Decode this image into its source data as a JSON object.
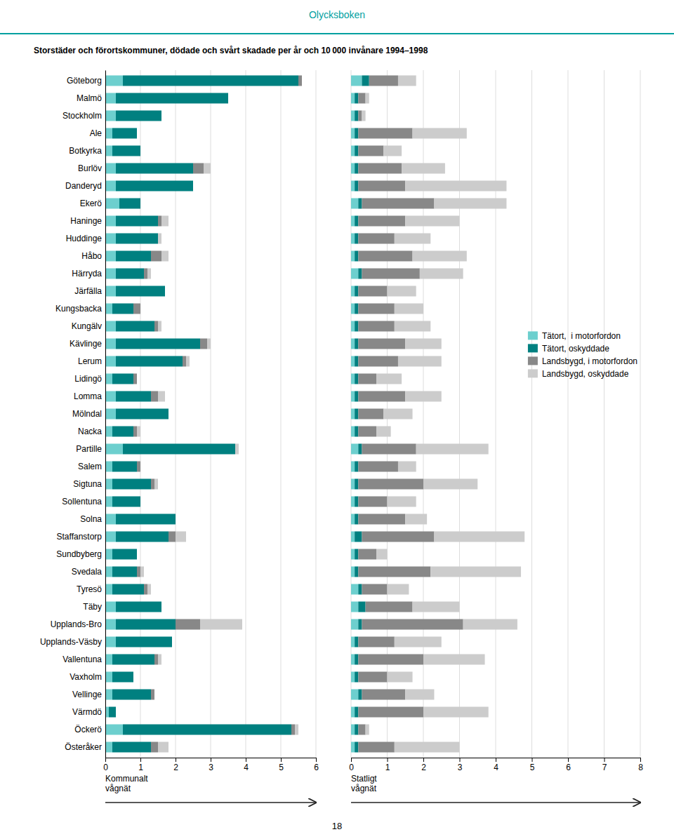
{
  "chart_data": [
    {
      "type": "bar",
      "title": "Olycksboken",
      "subtitle": "Storstäder och förortskommuner, dödade och svårt skadade per år och 10 000 invånare 1994–1998",
      "annotations": [
        "18"
      ],
      "orientation": "horizontal",
      "stacked": true,
      "grid": true,
      "xlabel": "Kommunalt\nvågnät",
      "categories": [
        "Göteborg",
        "Malmö",
        "Stockholm",
        "Ale",
        "Botkyrka",
        "Burlöv",
        "Danderyd",
        "Ekerö",
        "Haninge",
        "Huddinge",
        "Håbo",
        "Härryda",
        "Järfälla",
        "Kungsbacka",
        "Kungälv",
        "Kävlinge",
        "Lerum",
        "Lidingö",
        "Lomma",
        "Mölndal",
        "Nacka",
        "Partille",
        "Salem",
        "Sigtuna",
        "Sollentuna",
        "Solna",
        "Staffanstorp",
        "Sundbyberg",
        "Svedala",
        "Tyresö",
        "Täby",
        "Upplands-Bro",
        "Upplands-Väsby",
        "Vallentuna",
        "Vaxholm",
        "Vellinge",
        "Värmdö",
        "Öckerö",
        "Österåker"
      ],
      "series": [
        {
          "name": "Tätort,  i motorfordon",
          "color": "#6dcfce",
          "values": [
            0.5,
            0.3,
            0.3,
            0.2,
            0.2,
            0.3,
            0.3,
            0.4,
            0.3,
            0.3,
            0.3,
            0.3,
            0.3,
            0.2,
            0.3,
            0.3,
            0.3,
            0.2,
            0.3,
            0.3,
            0.2,
            0.5,
            0.2,
            0.2,
            0.2,
            0.3,
            0.3,
            0.2,
            0.2,
            0.2,
            0.3,
            0.3,
            0.3,
            0.2,
            0.2,
            0.2,
            0.1,
            0.5,
            0.2
          ]
        },
        {
          "name": "Tätort, oskyddade",
          "color": "#008080",
          "values": [
            5.0,
            3.2,
            1.3,
            0.7,
            0.8,
            2.2,
            2.2,
            0.6,
            1.2,
            1.2,
            1.0,
            0.8,
            1.4,
            0.6,
            1.1,
            2.4,
            1.9,
            0.6,
            1.0,
            1.5,
            0.6,
            3.2,
            0.7,
            1.1,
            0.8,
            1.7,
            1.5,
            0.7,
            0.7,
            0.9,
            1.3,
            1.7,
            1.6,
            1.2,
            0.6,
            1.1,
            0.2,
            4.8,
            1.1
          ]
        },
        {
          "name": "Landsbygd, i motorfordon",
          "color": "#888888",
          "values": [
            0.1,
            0.0,
            0.0,
            0.0,
            0.0,
            0.3,
            0.0,
            0.0,
            0.1,
            0.0,
            0.3,
            0.1,
            0.0,
            0.2,
            0.1,
            0.2,
            0.1,
            0.1,
            0.2,
            0.0,
            0.1,
            0.0,
            0.1,
            0.1,
            0.0,
            0.0,
            0.2,
            0.0,
            0.1,
            0.1,
            0.0,
            0.7,
            0.0,
            0.1,
            0.0,
            0.1,
            0.0,
            0.1,
            0.2
          ]
        },
        {
          "name": "Landsbygd, oskyddade",
          "color": "#cccccc",
          "values": [
            0.0,
            0.0,
            0.0,
            0.0,
            0.0,
            0.2,
            0.0,
            0.0,
            0.2,
            0.1,
            0.2,
            0.1,
            0.0,
            0.0,
            0.1,
            0.1,
            0.1,
            0.0,
            0.2,
            0.0,
            0.1,
            0.1,
            0.0,
            0.1,
            0.0,
            0.0,
            0.3,
            0.0,
            0.1,
            0.1,
            0.0,
            1.2,
            0.0,
            0.1,
            0.0,
            0.0,
            0.0,
            0.1,
            0.3
          ]
        }
      ],
      "xlim": [
        0,
        6
      ],
      "xticks": [
        0,
        1,
        2,
        3,
        4,
        5,
        6
      ]
    },
    {
      "type": "bar",
      "orientation": "horizontal",
      "stacked": true,
      "grid": true,
      "legend": "right",
      "tick_labels": "x",
      "xlabel": "Statligt\nvågnät",
      "categories": [
        "Göteborg",
        "Malmö",
        "Stockholm",
        "Ale",
        "Botkyrka",
        "Burlöv",
        "Danderyd",
        "Ekerö",
        "Haninge",
        "Huddinge",
        "Håbo",
        "Härryda",
        "Järfälla",
        "Kungsbacka",
        "Kungälv",
        "Kävlinge",
        "Lerum",
        "Lidingö",
        "Lomma",
        "Mölndal",
        "Nacka",
        "Partille",
        "Salem",
        "Sigtuna",
        "Sollentuna",
        "Solna",
        "Staffanstorp",
        "Sundbyberg",
        "Svedala",
        "Tyresö",
        "Täby",
        "Upplands-Bro",
        "Upplands-Väsby",
        "Vallentuna",
        "Vaxholm",
        "Vellinge",
        "Värmdö",
        "Öckerö",
        "Österåker"
      ],
      "series": [
        {
          "name": "Tätort,  i motorfordon",
          "color": "#6dcfce",
          "values": [
            0.3,
            0.1,
            0.1,
            0.1,
            0.1,
            0.1,
            0.1,
            0.2,
            0.1,
            0.1,
            0.1,
            0.2,
            0.1,
            0.1,
            0.1,
            0.1,
            0.1,
            0.1,
            0.1,
            0.1,
            0.1,
            0.2,
            0.1,
            0.1,
            0.1,
            0.1,
            0.1,
            0.1,
            0.1,
            0.2,
            0.2,
            0.2,
            0.1,
            0.1,
            0.1,
            0.2,
            0.1,
            0.1,
            0.1
          ]
        },
        {
          "name": "Tätort, oskyddade",
          "color": "#008080",
          "values": [
            0.2,
            0.1,
            0.1,
            0.1,
            0.1,
            0.1,
            0.1,
            0.1,
            0.1,
            0.1,
            0.1,
            0.1,
            0.1,
            0.1,
            0.1,
            0.1,
            0.1,
            0.1,
            0.1,
            0.1,
            0.1,
            0.1,
            0.1,
            0.1,
            0.1,
            0.1,
            0.2,
            0.1,
            0.1,
            0.1,
            0.2,
            0.1,
            0.1,
            0.1,
            0.1,
            0.1,
            0.1,
            0.1,
            0.1
          ]
        },
        {
          "name": "Landsbygd, i motorfordon",
          "color": "#888888",
          "values": [
            0.8,
            0.2,
            0.1,
            1.5,
            0.7,
            1.2,
            1.3,
            2.0,
            1.3,
            1.0,
            1.5,
            1.6,
            0.8,
            1.0,
            1.0,
            1.3,
            1.1,
            0.5,
            1.3,
            0.7,
            0.5,
            1.5,
            1.1,
            1.8,
            0.8,
            1.3,
            2.0,
            0.5,
            2.0,
            0.7,
            1.3,
            2.8,
            1.0,
            1.8,
            0.8,
            1.2,
            1.8,
            0.2,
            1.0
          ]
        },
        {
          "name": "Landsbygd, oskyddade",
          "color": "#cccccc",
          "values": [
            0.5,
            0.1,
            0.1,
            1.5,
            0.5,
            1.2,
            2.8,
            2.0,
            1.5,
            1.0,
            1.5,
            1.2,
            0.8,
            0.8,
            1.0,
            1.0,
            1.2,
            0.7,
            1.0,
            0.8,
            0.4,
            2.0,
            0.5,
            1.5,
            0.8,
            0.6,
            2.5,
            0.3,
            2.5,
            0.6,
            1.3,
            1.5,
            1.3,
            1.7,
            0.7,
            0.8,
            1.8,
            0.1,
            1.8
          ]
        }
      ],
      "xlim": [
        0,
        8
      ],
      "xticks": [
        0,
        1,
        2,
        3,
        4,
        5,
        6,
        7,
        8
      ]
    }
  ]
}
